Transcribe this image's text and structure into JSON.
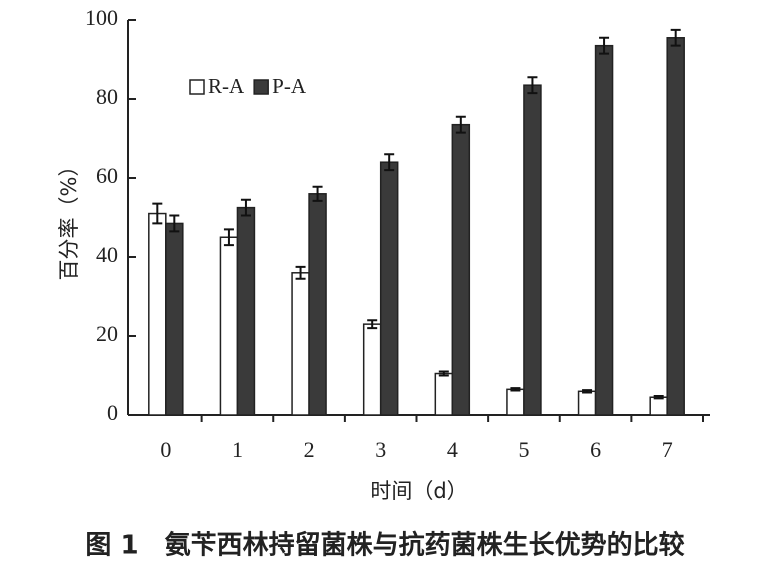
{
  "chart_data": {
    "type": "bar",
    "xlabel": "时间（d）",
    "ylabel": "百分率（%）",
    "caption": "图 1　氨苄西林持留菌株与抗药菌株生长优势的比较",
    "categories": [
      "0",
      "1",
      "2",
      "3",
      "4",
      "5",
      "6",
      "7"
    ],
    "series": [
      {
        "name": "R-A",
        "color": "#ffffff",
        "values": [
          51,
          45,
          36,
          23,
          10.5,
          6.5,
          6,
          4.5
        ],
        "errors": [
          2.5,
          2,
          1.5,
          1,
          0.5,
          0.3,
          0.3,
          0.3
        ]
      },
      {
        "name": "P-A",
        "color": "#3a3a3a",
        "values": [
          48.5,
          52.5,
          56,
          64,
          73.5,
          83.5,
          93.5,
          95.5
        ],
        "errors": [
          2,
          2,
          1.8,
          2,
          2,
          2,
          2,
          2
        ]
      }
    ],
    "ylim": [
      0,
      100
    ],
    "yticks": [
      0,
      20,
      40,
      60,
      80,
      100
    ],
    "legend": "upper-left"
  }
}
